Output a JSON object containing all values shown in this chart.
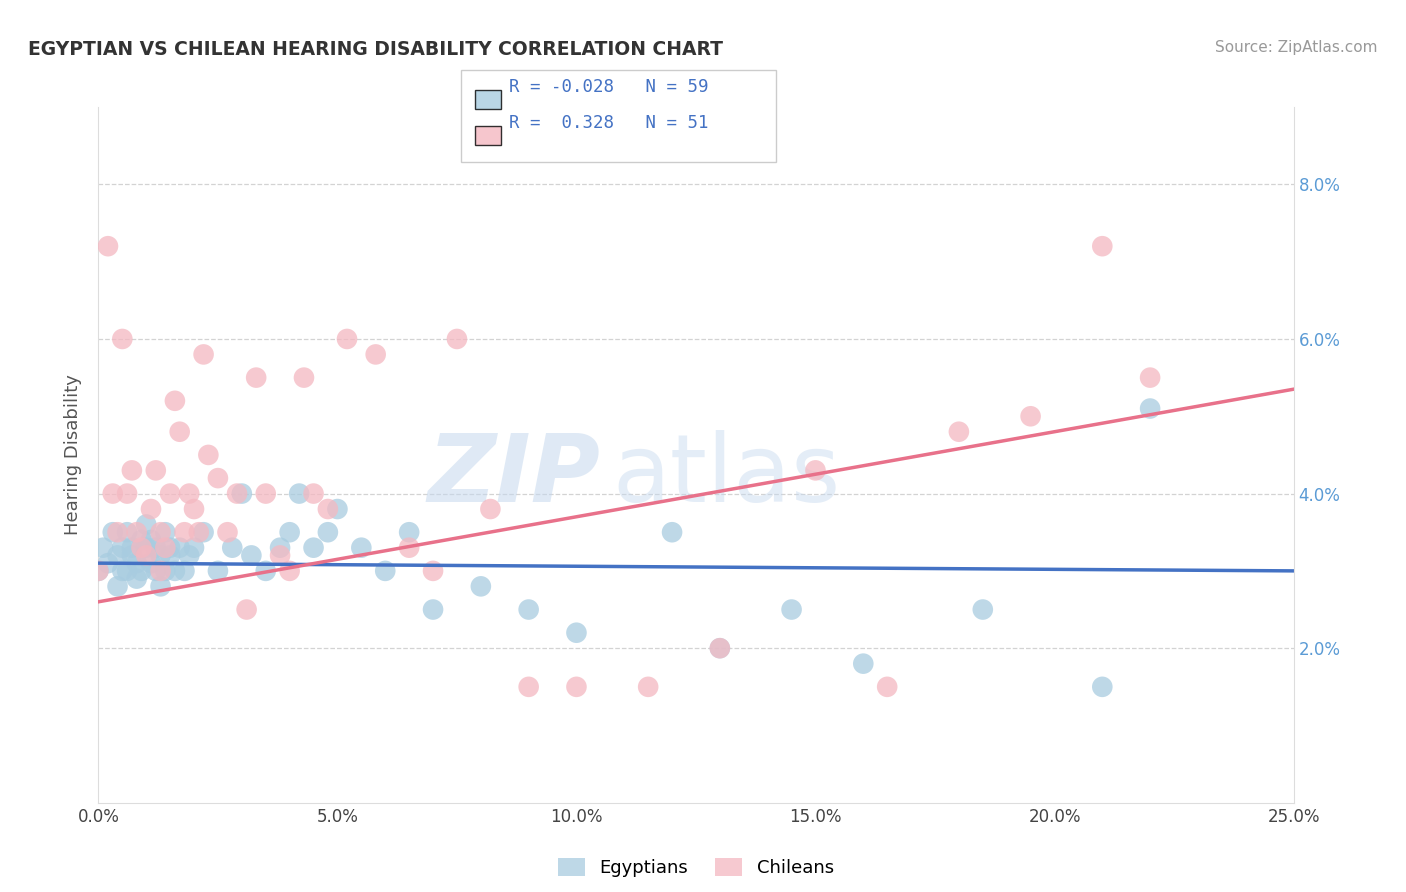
{
  "title": "EGYPTIAN VS CHILEAN HEARING DISABILITY CORRELATION CHART",
  "source": "Source: ZipAtlas.com",
  "ylabel": "Hearing Disability",
  "xmin": 0.0,
  "xmax": 0.25,
  "ymin": 0.0,
  "ymax": 0.09,
  "xticks": [
    0.0,
    0.05,
    0.1,
    0.15,
    0.2,
    0.25
  ],
  "xticklabels": [
    "0.0%",
    "5.0%",
    "10.0%",
    "15.0%",
    "20.0%",
    "25.0%"
  ],
  "yticks": [
    0.02,
    0.04,
    0.06,
    0.08
  ],
  "yticklabels_left": [
    "2.0%",
    "4.0%",
    "6.0%",
    "8.0%"
  ],
  "yticklabels_right": [
    "2.0%",
    "4.0%",
    "6.0%",
    "8.0%"
  ],
  "egyptian_color": "#a8cce0",
  "chilean_color": "#f4b8c1",
  "egyptian_line_color": "#4472c4",
  "chilean_line_color": "#e8718a",
  "R_egyptian": -0.028,
  "N_egyptian": 59,
  "R_chilean": 0.328,
  "N_chilean": 51,
  "watermark_zip": "ZIP",
  "watermark_atlas": "atlas",
  "legend_title_color": "#4472c4",
  "egyptian_scatter_x": [
    0.0,
    0.001,
    0.002,
    0.003,
    0.004,
    0.004,
    0.005,
    0.005,
    0.006,
    0.006,
    0.007,
    0.007,
    0.008,
    0.008,
    0.009,
    0.009,
    0.01,
    0.01,
    0.011,
    0.011,
    0.012,
    0.012,
    0.013,
    0.013,
    0.014,
    0.014,
    0.015,
    0.015,
    0.016,
    0.017,
    0.018,
    0.019,
    0.02,
    0.022,
    0.025,
    0.028,
    0.03,
    0.032,
    0.035,
    0.038,
    0.04,
    0.042,
    0.045,
    0.048,
    0.05,
    0.055,
    0.06,
    0.065,
    0.07,
    0.08,
    0.09,
    0.1,
    0.12,
    0.13,
    0.145,
    0.16,
    0.185,
    0.21,
    0.22
  ],
  "egyptian_scatter_y": [
    0.03,
    0.033,
    0.031,
    0.035,
    0.028,
    0.032,
    0.033,
    0.03,
    0.03,
    0.035,
    0.032,
    0.033,
    0.031,
    0.029,
    0.034,
    0.03,
    0.033,
    0.036,
    0.031,
    0.034,
    0.033,
    0.03,
    0.032,
    0.028,
    0.035,
    0.03,
    0.033,
    0.032,
    0.03,
    0.033,
    0.03,
    0.032,
    0.033,
    0.035,
    0.03,
    0.033,
    0.04,
    0.032,
    0.03,
    0.033,
    0.035,
    0.04,
    0.033,
    0.035,
    0.038,
    0.033,
    0.03,
    0.035,
    0.025,
    0.028,
    0.025,
    0.022,
    0.035,
    0.02,
    0.025,
    0.018,
    0.025,
    0.015,
    0.051
  ],
  "chilean_scatter_x": [
    0.0,
    0.002,
    0.003,
    0.004,
    0.005,
    0.006,
    0.007,
    0.008,
    0.009,
    0.01,
    0.011,
    0.012,
    0.013,
    0.013,
    0.014,
    0.015,
    0.016,
    0.017,
    0.018,
    0.019,
    0.02,
    0.021,
    0.022,
    0.023,
    0.025,
    0.027,
    0.029,
    0.031,
    0.033,
    0.035,
    0.038,
    0.04,
    0.043,
    0.045,
    0.048,
    0.052,
    0.058,
    0.065,
    0.07,
    0.075,
    0.082,
    0.09,
    0.1,
    0.115,
    0.13,
    0.15,
    0.165,
    0.18,
    0.195,
    0.21,
    0.22
  ],
  "chilean_scatter_y": [
    0.03,
    0.072,
    0.04,
    0.035,
    0.06,
    0.04,
    0.043,
    0.035,
    0.033,
    0.032,
    0.038,
    0.043,
    0.03,
    0.035,
    0.033,
    0.04,
    0.052,
    0.048,
    0.035,
    0.04,
    0.038,
    0.035,
    0.058,
    0.045,
    0.042,
    0.035,
    0.04,
    0.025,
    0.055,
    0.04,
    0.032,
    0.03,
    0.055,
    0.04,
    0.038,
    0.06,
    0.058,
    0.033,
    0.03,
    0.06,
    0.038,
    0.015,
    0.015,
    0.015,
    0.02,
    0.043,
    0.015,
    0.048,
    0.05,
    0.072,
    0.055
  ]
}
